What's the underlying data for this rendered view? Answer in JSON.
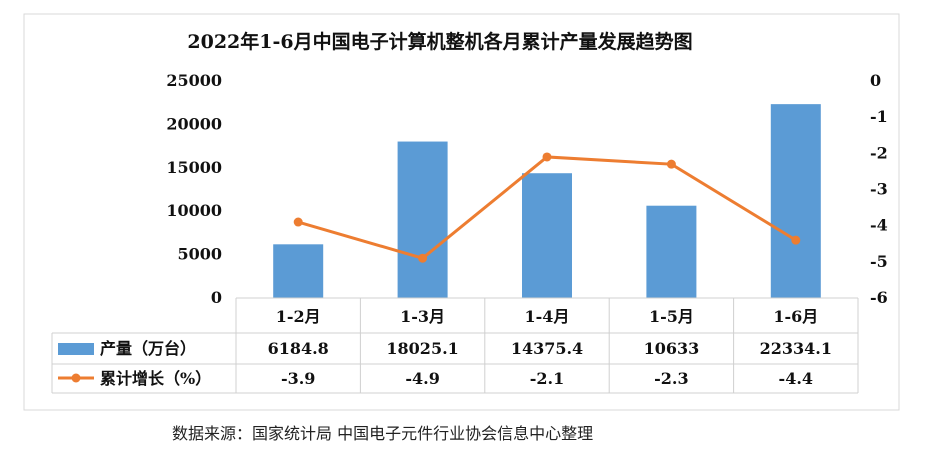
{
  "chart_data": {
    "type": "bar",
    "title": "2022年1-6月中国电子计算机整机各月累计产量发展趋势图",
    "categories": [
      "1-2月",
      "1-3月",
      "1-4月",
      "1-5月",
      "1-6月"
    ],
    "series": [
      {
        "name": "产量（万台）",
        "type": "bar",
        "axis": "left",
        "color": "#5b9bd5",
        "values": [
          6184.8,
          18025.1,
          14375.4,
          10633,
          22334.1
        ],
        "labels": [
          "6184.8",
          "18025.1",
          "14375.4",
          "10633",
          "22334.1"
        ]
      },
      {
        "name": "累计增长（%）",
        "type": "line",
        "axis": "right",
        "color": "#ed7d31",
        "values": [
          -3.9,
          -4.9,
          -2.1,
          -2.3,
          -4.4
        ],
        "labels": [
          "-3.9",
          "-4.9",
          "-2.1",
          "-2.3",
          "-4.4"
        ]
      }
    ],
    "y_left": {
      "min": 0,
      "max": 25000,
      "ticks": [
        "0",
        "5000",
        "10000",
        "15000",
        "20000",
        "25000"
      ]
    },
    "y_right": {
      "min": -6,
      "max": 0,
      "ticks": [
        "-6",
        "-5",
        "-4",
        "-3",
        "-2",
        "-1",
        "0"
      ]
    },
    "grid": false,
    "legend": "data-table-left",
    "data_table": true
  },
  "source_note": "数据来源：国家统计局    中国电子元件行业协会信息中心整理"
}
